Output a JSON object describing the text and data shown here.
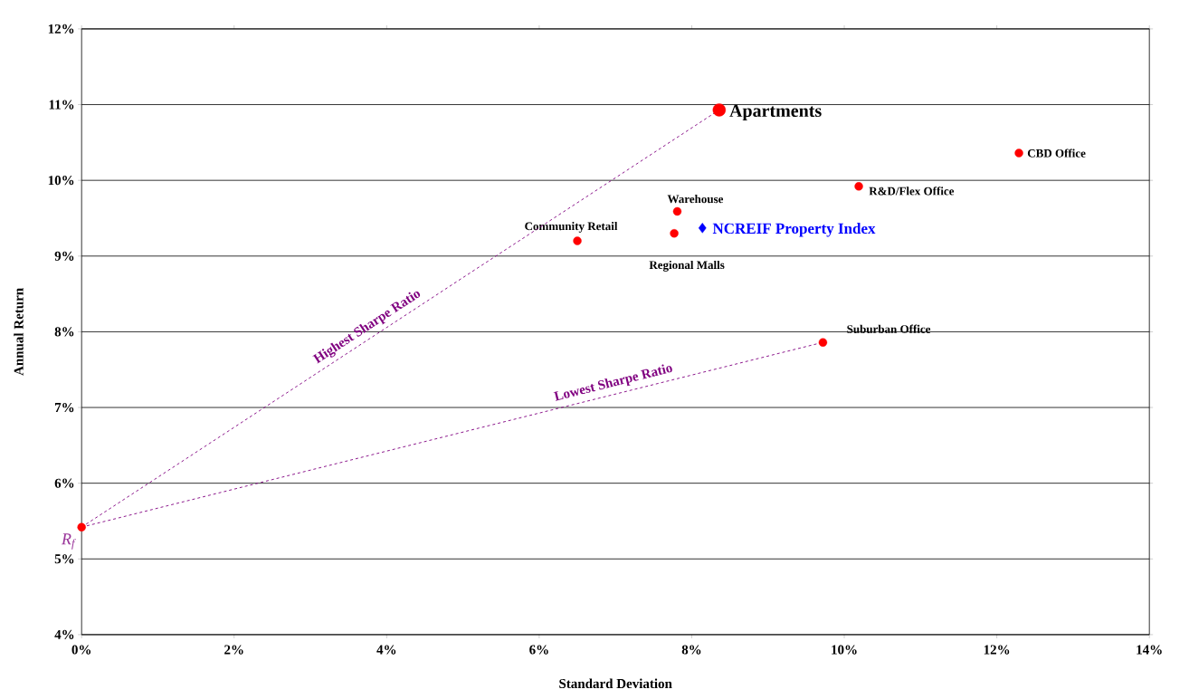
{
  "chart_data": {
    "type": "scatter",
    "xlabel": "Standard Deviation",
    "ylabel": "Annual Return",
    "xlim": [
      0,
      14
    ],
    "ylim": [
      4,
      12
    ],
    "xticks": [
      {
        "value": 0,
        "label": "0%"
      },
      {
        "value": 2,
        "label": "2%"
      },
      {
        "value": 4,
        "label": "4%"
      },
      {
        "value": 6,
        "label": "6%"
      },
      {
        "value": 8,
        "label": "8%"
      },
      {
        "value": 10,
        "label": "10%"
      },
      {
        "value": 12,
        "label": "12%"
      },
      {
        "value": 14,
        "label": "14%"
      }
    ],
    "yticks": [
      {
        "value": 4,
        "label": "4%"
      },
      {
        "value": 5,
        "label": "5%"
      },
      {
        "value": 6,
        "label": "6%"
      },
      {
        "value": 7,
        "label": "7%"
      },
      {
        "value": 8,
        "label": "8%"
      },
      {
        "value": 9,
        "label": "9%"
      },
      {
        "value": 10,
        "label": "10%"
      },
      {
        "value": 11,
        "label": "11%"
      },
      {
        "value": 12,
        "label": "12%"
      }
    ],
    "grid": "y",
    "series": [
      {
        "name": "Apartments",
        "color": "#ff0000",
        "marker": "circle",
        "x": [
          8.36
        ],
        "values": [
          10.93
        ]
      },
      {
        "name": "CBD Office",
        "color": "#ff0000",
        "marker": "circle",
        "x": [
          12.29
        ],
        "values": [
          10.36
        ]
      },
      {
        "name": "R&D/Flex Office",
        "color": "#ff0000",
        "marker": "circle",
        "x": [
          10.19
        ],
        "values": [
          9.92
        ]
      },
      {
        "name": "Warehouse",
        "color": "#ff0000",
        "marker": "circle",
        "x": [
          7.81
        ],
        "values": [
          9.59
        ]
      },
      {
        "name": "NCREIF Property Index",
        "color": "#0000ff",
        "marker": "diamond",
        "x": [
          8.14
        ],
        "values": [
          9.37
        ]
      },
      {
        "name": "Regional Malls",
        "color": "#ff0000",
        "marker": "circle",
        "x": [
          7.77
        ],
        "values": [
          9.3
        ]
      },
      {
        "name": "Community Retail",
        "color": "#ff0000",
        "marker": "circle",
        "x": [
          6.5
        ],
        "values": [
          9.2
        ]
      },
      {
        "name": "Suburban Office",
        "color": "#ff0000",
        "marker": "circle",
        "x": [
          9.72
        ],
        "values": [
          7.86
        ]
      },
      {
        "name": "R$_{f}$",
        "color": "#ff0000",
        "marker": "circle",
        "x": [
          0
        ],
        "values": [
          5.42
        ]
      },
      {
        "type": "line",
        "color": "#800080",
        "line_style": "dashed",
        "marker": "none",
        "x": [
          0,
          8.36
        ],
        "values": [
          5.42,
          10.93
        ]
      },
      {
        "type": "line",
        "color": "#800080",
        "line_style": "dashed",
        "marker": "none",
        "x": [
          0,
          9.72
        ],
        "values": [
          5.42,
          7.86
        ]
      }
    ],
    "annotations": [
      {
        "text": "Highest Sharpe Ratio",
        "x": 3.83,
        "y": 7.94
      },
      {
        "text": "Lowest Sharpe Ratio",
        "x": 7.01,
        "y": 7.18
      }
    ]
  }
}
